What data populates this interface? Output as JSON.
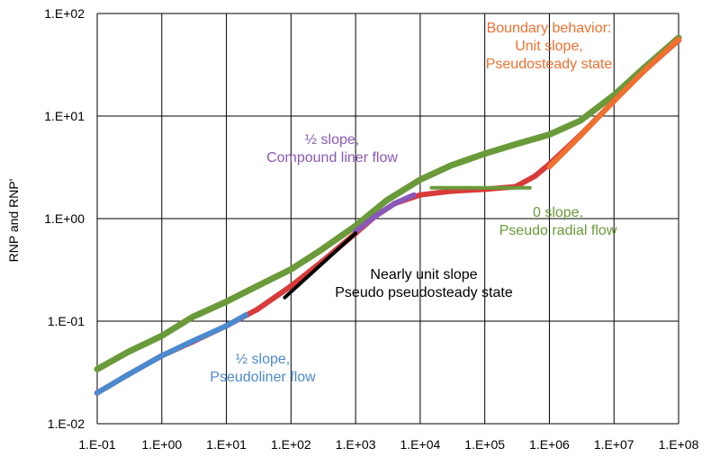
{
  "chart_data": {
    "type": "scatter",
    "title": "",
    "xlabel": "",
    "ylabel": "RNP and RNP'",
    "xscale": "log",
    "yscale": "log",
    "xlim": [
      0.1,
      100000000
    ],
    "ylim": [
      0.01,
      100
    ],
    "grid": true,
    "legend": "none",
    "x_tick_labels": [
      "1.E-01",
      "1.E+00",
      "1.E+01",
      "1.E+02",
      "1.E+03",
      "1.E+04",
      "1.E+05",
      "1.E+06",
      "1.E+07",
      "1.E+08"
    ],
    "y_tick_labels": [
      "1.E-02",
      "1.E-01",
      "1.E+00",
      "1.E+01",
      "1.E+02"
    ],
    "series": [
      {
        "color": "#6a9a3a",
        "points": [
          [
            0.1,
            0.034
          ],
          [
            0.3,
            0.05
          ],
          [
            1,
            0.072
          ],
          [
            3,
            0.11
          ],
          [
            10,
            0.155
          ],
          [
            30,
            0.22
          ],
          [
            100,
            0.32
          ],
          [
            300,
            0.5
          ],
          [
            1000,
            0.85
          ],
          [
            3000,
            1.5
          ],
          [
            10000,
            2.4
          ],
          [
            30000,
            3.3
          ],
          [
            100000,
            4.3
          ],
          [
            300000,
            5.3
          ],
          [
            1000000,
            6.6
          ],
          [
            3000000,
            9
          ],
          [
            10000000,
            16
          ],
          [
            30000000,
            30
          ],
          [
            100000000,
            58
          ]
        ]
      },
      {
        "color": "#d93a3a",
        "points": [
          [
            0.1,
            0.02
          ],
          [
            0.3,
            0.03
          ],
          [
            1,
            0.046
          ],
          [
            3,
            0.063
          ],
          [
            10,
            0.09
          ],
          [
            30,
            0.13
          ],
          [
            100,
            0.22
          ],
          [
            300,
            0.38
          ],
          [
            1000,
            0.72
          ],
          [
            2000,
            1.05
          ],
          [
            4000,
            1.4
          ],
          [
            10000,
            1.7
          ],
          [
            30000,
            1.85
          ],
          [
            100000,
            1.93
          ],
          [
            300000,
            2.05
          ],
          [
            600000,
            2.6
          ],
          [
            1000000,
            3.4
          ],
          [
            3000000,
            6.5
          ],
          [
            10000000,
            14
          ],
          [
            30000000,
            28
          ],
          [
            100000000,
            55
          ]
        ]
      },
      {
        "color": "#4a8ad0",
        "points": [
          [
            0.1,
            0.02
          ],
          [
            0.3,
            0.03
          ],
          [
            1,
            0.046
          ],
          [
            3,
            0.064
          ],
          [
            10,
            0.09
          ],
          [
            20,
            0.115
          ]
        ]
      },
      {
        "color": "#8a58b8",
        "points": [
          [
            1000,
            0.75
          ],
          [
            2000,
            1.05
          ],
          [
            4000,
            1.4
          ],
          [
            8000,
            1.7
          ]
        ]
      },
      {
        "color": "#000000",
        "points": [
          [
            80,
            0.17
          ],
          [
            1000,
            0.72
          ]
        ]
      },
      {
        "color": "#6a9a3a",
        "points": [
          [
            15000,
            2.0
          ],
          [
            500000,
            2.0
          ]
        ]
      },
      {
        "color": "#f07030",
        "points": [
          [
            1000000,
            3.2
          ],
          [
            3000000,
            6.4
          ],
          [
            10000000,
            14
          ],
          [
            30000000,
            28
          ],
          [
            100000000,
            56
          ]
        ]
      }
    ],
    "annotations": [
      {
        "lines": [
          "Boundary behavior:",
          "Unit slope,",
          "Pseudosteady state"
        ],
        "color": "#f07030"
      },
      {
        "lines": [
          "½ slope,",
          "Compound liner flow"
        ],
        "color": "#8a58b8"
      },
      {
        "lines": [
          "0 slope,",
          "Pseudo radial flow"
        ],
        "color": "#6a9a3a"
      },
      {
        "lines": [
          "Nearly unit slope",
          "Pseudo pseudosteady state"
        ],
        "color": "#000000"
      },
      {
        "lines": [
          "½ slope,",
          "Pseudoliner flow"
        ],
        "color": "#4a8ad0"
      }
    ]
  }
}
